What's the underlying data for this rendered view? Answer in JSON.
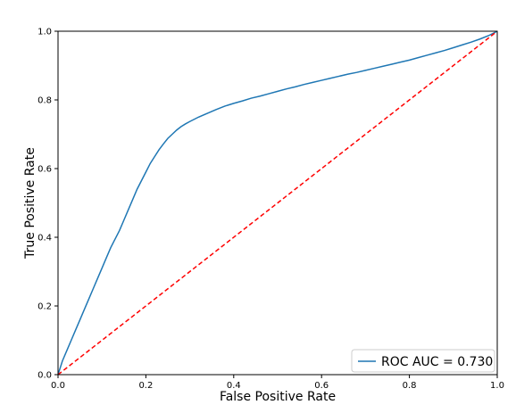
{
  "chart_data": {
    "type": "line",
    "title": "",
    "xlabel": "False Positive Rate",
    "ylabel": "True Positive Rate",
    "xlim": [
      0.0,
      1.0
    ],
    "ylim": [
      0.0,
      1.0
    ],
    "xticks": [
      "0.0",
      "0.2",
      "0.4",
      "0.6",
      "0.8",
      "1.0"
    ],
    "yticks": [
      "0.0",
      "0.2",
      "0.4",
      "0.6",
      "0.8",
      "1.0"
    ],
    "grid": false,
    "legend_position": "bottom-right",
    "series": [
      {
        "name": "ROC AUC = 0.730",
        "color": "#1f77b4",
        "style": "solid",
        "x": [
          0.0,
          0.005,
          0.01,
          0.02,
          0.03,
          0.04,
          0.05,
          0.06,
          0.07,
          0.08,
          0.09,
          0.1,
          0.11,
          0.12,
          0.13,
          0.14,
          0.15,
          0.16,
          0.17,
          0.18,
          0.19,
          0.2,
          0.21,
          0.22,
          0.23,
          0.24,
          0.25,
          0.26,
          0.27,
          0.28,
          0.29,
          0.3,
          0.32,
          0.34,
          0.36,
          0.38,
          0.4,
          0.42,
          0.44,
          0.46,
          0.48,
          0.5,
          0.52,
          0.54,
          0.56,
          0.58,
          0.6,
          0.62,
          0.64,
          0.66,
          0.68,
          0.7,
          0.72,
          0.74,
          0.76,
          0.78,
          0.8,
          0.82,
          0.84,
          0.86,
          0.88,
          0.9,
          0.92,
          0.94,
          0.96,
          0.98,
          1.0
        ],
        "y": [
          0.0,
          0.02,
          0.04,
          0.07,
          0.1,
          0.13,
          0.16,
          0.19,
          0.22,
          0.25,
          0.28,
          0.31,
          0.34,
          0.37,
          0.395,
          0.42,
          0.45,
          0.48,
          0.51,
          0.54,
          0.565,
          0.59,
          0.615,
          0.635,
          0.655,
          0.672,
          0.688,
          0.7,
          0.712,
          0.722,
          0.73,
          0.737,
          0.75,
          0.761,
          0.772,
          0.782,
          0.79,
          0.797,
          0.805,
          0.811,
          0.818,
          0.825,
          0.832,
          0.838,
          0.845,
          0.851,
          0.857,
          0.863,
          0.869,
          0.875,
          0.88,
          0.886,
          0.892,
          0.898,
          0.904,
          0.91,
          0.916,
          0.923,
          0.93,
          0.937,
          0.944,
          0.952,
          0.96,
          0.968,
          0.977,
          0.987,
          1.0
        ]
      },
      {
        "name": "",
        "color": "#ff0000",
        "style": "dashed",
        "x": [
          0.0,
          1.0
        ],
        "y": [
          0.0,
          1.0
        ]
      }
    ]
  }
}
